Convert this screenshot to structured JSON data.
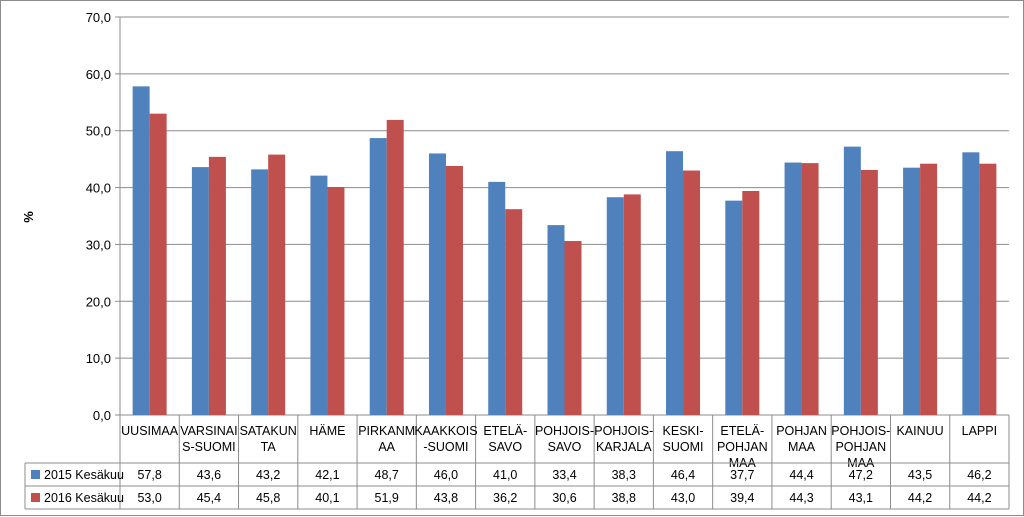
{
  "chart_data": {
    "type": "bar",
    "ylabel": "%",
    "xlabel": "",
    "ylim": [
      0,
      70
    ],
    "yticks": [
      0,
      10,
      20,
      30,
      40,
      50,
      60,
      70
    ],
    "ytick_labels": [
      "0,0",
      "10,0",
      "20,0",
      "30,0",
      "40,0",
      "50,0",
      "60,0",
      "70,0"
    ],
    "grid": true,
    "legend": "data-table-left",
    "categories": [
      [
        "UUSIMAA"
      ],
      [
        "VARSINAI",
        "S-SUOMI"
      ],
      [
        "SATAKUN",
        "TA"
      ],
      [
        "HÄME"
      ],
      [
        "PIRKANM",
        "AA"
      ],
      [
        "KAAKKOIS",
        "-SUOMI"
      ],
      [
        "ETELÄ-",
        "SAVO"
      ],
      [
        "POHJOIS-",
        "SAVO"
      ],
      [
        "POHJOIS-",
        "KARJALA"
      ],
      [
        "KESKI-",
        "SUOMI"
      ],
      [
        "ETELÄ-",
        "POHJAN",
        "MAA"
      ],
      [
        "POHJAN",
        "MAA"
      ],
      [
        "POHJOIS-",
        "POHJAN",
        "MAA"
      ],
      [
        "KAINUU"
      ],
      [
        "LAPPI"
      ]
    ],
    "series": [
      {
        "name": "2015 Kesäkuu",
        "color": "#4f81bd",
        "values": [
          57.8,
          43.6,
          43.2,
          42.1,
          48.7,
          46.0,
          41.0,
          33.4,
          38.3,
          46.4,
          37.7,
          44.4,
          47.2,
          43.5,
          46.2
        ],
        "labels": [
          "57,8",
          "43,6",
          "43,2",
          "42,1",
          "48,7",
          "46,0",
          "41,0",
          "33,4",
          "38,3",
          "46,4",
          "37,7",
          "44,4",
          "47,2",
          "43,5",
          "46,2"
        ]
      },
      {
        "name": "2016 Kesäkuu",
        "color": "#c0504d",
        "values": [
          53.0,
          45.4,
          45.8,
          40.1,
          51.9,
          43.8,
          36.2,
          30.6,
          38.8,
          43.0,
          39.4,
          44.3,
          43.1,
          44.2,
          44.2
        ],
        "labels": [
          "53,0",
          "45,4",
          "45,8",
          "40,1",
          "51,9",
          "43,8",
          "36,2",
          "30,6",
          "38,8",
          "43,0",
          "39,4",
          "44,3",
          "43,1",
          "44,2",
          "44,2"
        ]
      }
    ]
  }
}
